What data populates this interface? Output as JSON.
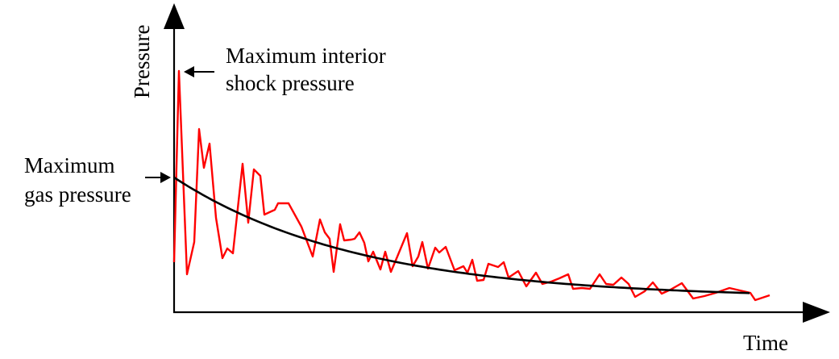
{
  "diagram": {
    "axes": {
      "y_label": "Pressure",
      "x_label": "Time"
    },
    "annotations": {
      "shock": {
        "line1": "Maximum interior",
        "line2": "shock pressure"
      },
      "gas": {
        "line1": "Maximum",
        "line2": "gas pressure"
      }
    },
    "colors": {
      "shock_curve": "#ff0000",
      "gas_curve": "#000000",
      "axes": "#000000"
    },
    "curves": {
      "shock": "fluctuating pressure trace (red)",
      "gas": "smooth decaying pressure trend (black)"
    }
  }
}
